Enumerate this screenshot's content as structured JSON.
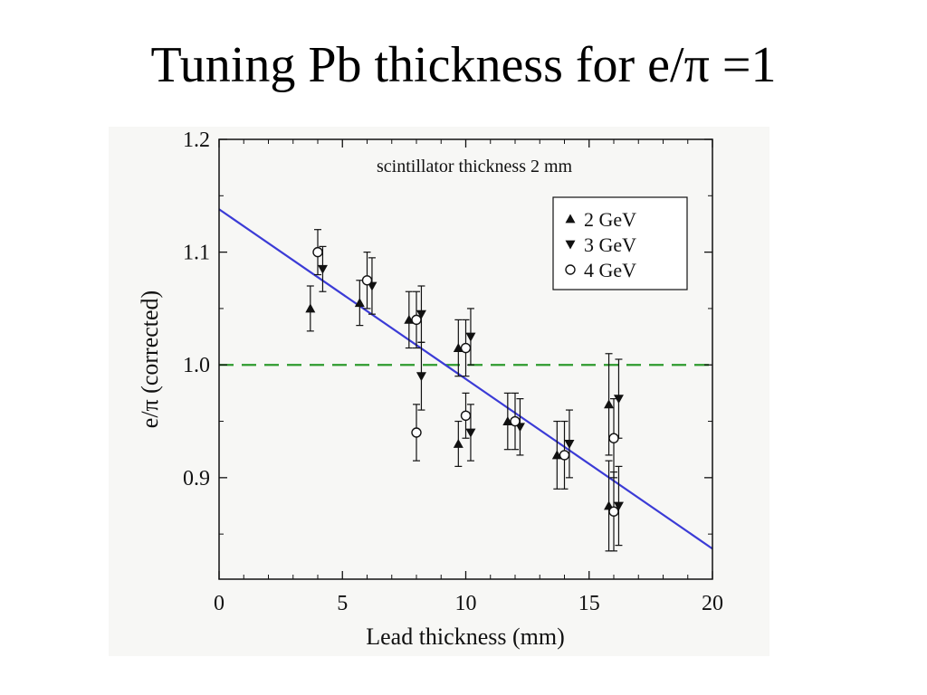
{
  "slide": {
    "title": "Tuning Pb thickness for e/π =1"
  },
  "colors": {
    "fit_line": "#3b3bd6",
    "reference_line": "#2e9a2e",
    "markers": "#111111",
    "figure_background": "#f7f7f5"
  },
  "chart_data": {
    "type": "scatter",
    "xlabel": "Lead thickness (mm)",
    "ylabel": "e/π (corrected)",
    "annotation": "scintillator thickness 2 mm",
    "xlim": [
      0,
      20
    ],
    "ylim": [
      0.81,
      1.2
    ],
    "x_ticks": [
      0,
      5,
      10,
      15,
      20
    ],
    "y_ticks": [
      0.9,
      1.0,
      1.1,
      1.2
    ],
    "x_tick_labels": [
      "0",
      "5",
      "10",
      "15",
      "20"
    ],
    "y_tick_labels": [
      "0.9",
      "1.0",
      "1.1",
      "1.2"
    ],
    "legend_position": "top-right",
    "grid": false,
    "series": [
      {
        "name": "2 GeV",
        "marker": "triangle-up",
        "points": [
          {
            "x": 3.7,
            "y": 1.05,
            "err": 0.02
          },
          {
            "x": 5.7,
            "y": 1.055,
            "err": 0.02
          },
          {
            "x": 7.7,
            "y": 1.04,
            "err": 0.025
          },
          {
            "x": 9.7,
            "y": 1.015,
            "err": 0.025
          },
          {
            "x": 9.7,
            "y": 0.93,
            "err": 0.02
          },
          {
            "x": 11.7,
            "y": 0.95,
            "err": 0.025
          },
          {
            "x": 13.7,
            "y": 0.92,
            "err": 0.03
          },
          {
            "x": 15.8,
            "y": 0.965,
            "err": 0.045
          },
          {
            "x": 15.8,
            "y": 0.875,
            "err": 0.04
          }
        ]
      },
      {
        "name": "3 GeV",
        "marker": "triangle-down",
        "points": [
          {
            "x": 4.2,
            "y": 1.085,
            "err": 0.02
          },
          {
            "x": 6.2,
            "y": 1.07,
            "err": 0.025
          },
          {
            "x": 8.2,
            "y": 1.045,
            "err": 0.025
          },
          {
            "x": 8.2,
            "y": 0.99,
            "err": 0.03
          },
          {
            "x": 10.2,
            "y": 1.025,
            "err": 0.025
          },
          {
            "x": 10.2,
            "y": 0.94,
            "err": 0.025
          },
          {
            "x": 12.2,
            "y": 0.945,
            "err": 0.025
          },
          {
            "x": 14.2,
            "y": 0.93,
            "err": 0.03
          },
          {
            "x": 16.2,
            "y": 0.97,
            "err": 0.035
          },
          {
            "x": 16.2,
            "y": 0.875,
            "err": 0.035
          }
        ]
      },
      {
        "name": "4 GeV",
        "marker": "circle-open",
        "points": [
          {
            "x": 4.0,
            "y": 1.1,
            "err": 0.02
          },
          {
            "x": 6.0,
            "y": 1.075,
            "err": 0.025
          },
          {
            "x": 8.0,
            "y": 1.04,
            "err": 0.025
          },
          {
            "x": 8.0,
            "y": 0.94,
            "err": 0.025
          },
          {
            "x": 10.0,
            "y": 1.015,
            "err": 0.025
          },
          {
            "x": 10.0,
            "y": 0.955,
            "err": 0.02
          },
          {
            "x": 12.0,
            "y": 0.95,
            "err": 0.025
          },
          {
            "x": 14.0,
            "y": 0.92,
            "err": 0.03
          },
          {
            "x": 16.0,
            "y": 0.935,
            "err": 0.035
          },
          {
            "x": 16.0,
            "y": 0.87,
            "err": 0.035
          }
        ]
      }
    ],
    "fit_line": {
      "x": [
        0,
        20
      ],
      "y": [
        1.138,
        0.837
      ]
    },
    "reference_line": {
      "y": 1.0,
      "style": "dashed"
    }
  }
}
